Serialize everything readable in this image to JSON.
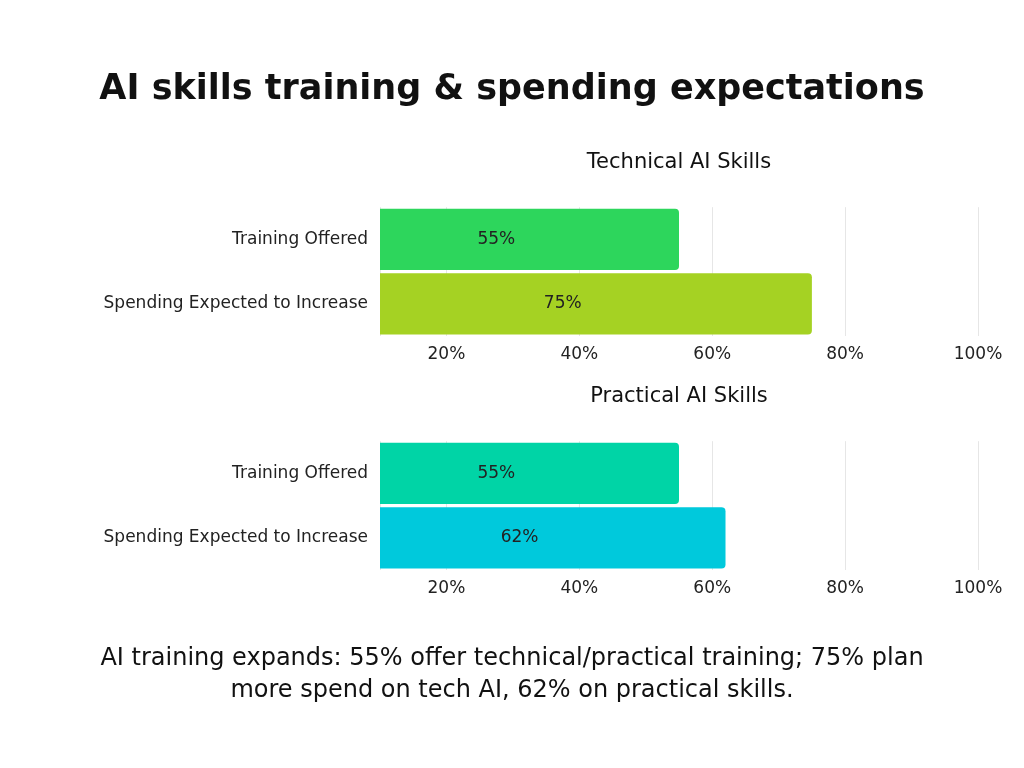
{
  "chart_data": [
    {
      "type": "bar",
      "title": "AI skills training & spending expectations",
      "subtitle": "Technical AI Skills",
      "orientation": "horizontal",
      "categories": [
        "Training Offered",
        "Spending Expected to Increase"
      ],
      "values": [
        55,
        75
      ],
      "colors": [
        "#2dd65c",
        "#a5d223"
      ],
      "value_labels": [
        "55%",
        "75%"
      ],
      "xlim": [
        10,
        100
      ],
      "xticks": [
        {
          "value": 10,
          "label": null
        },
        {
          "value": 20,
          "label": "20%"
        },
        {
          "value": 40,
          "label": "40%"
        },
        {
          "value": 60,
          "label": "60%"
        },
        {
          "value": 80,
          "label": "80%"
        },
        {
          "value": 100,
          "label": "100%"
        }
      ],
      "grid": "x"
    },
    {
      "type": "bar",
      "subtitle": "Practical AI Skills",
      "orientation": "horizontal",
      "categories": [
        "Training Offered",
        "Spending Expected to Increase"
      ],
      "values": [
        55,
        62
      ],
      "colors": [
        "#00d4a6",
        "#00c9dc"
      ],
      "value_labels": [
        "55%",
        "62%"
      ],
      "xlim": [
        10,
        100
      ],
      "xticks": [
        {
          "value": 10,
          "label": null
        },
        {
          "value": 20,
          "label": "20%"
        },
        {
          "value": 40,
          "label": "40%"
        },
        {
          "value": 60,
          "label": "60%"
        },
        {
          "value": 80,
          "label": "80%"
        },
        {
          "value": 100,
          "label": "100%"
        }
      ],
      "grid": "x",
      "annotations": [
        "AI training expands: 55% offer technical/practical training; 75% plan more spend on tech AI, 62% on practical skills."
      ]
    }
  ]
}
